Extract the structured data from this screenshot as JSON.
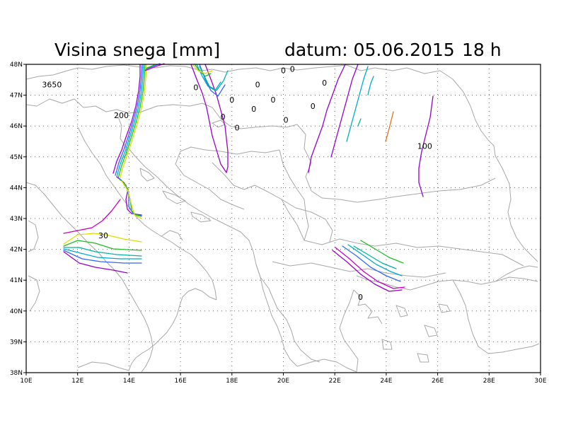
{
  "header": {
    "title": "Visina snega [mm]",
    "date_label": "datum: 05.06.2015",
    "hour_label": "18 h"
  },
  "axes": {
    "lon_range": [
      10,
      30
    ],
    "lat_range": [
      38,
      48
    ],
    "x_ticks": [
      "10E",
      "12E",
      "14E",
      "16E",
      "18E",
      "20E",
      "22E",
      "24E",
      "26E",
      "28E",
      "30E"
    ],
    "y_ticks": [
      "38N",
      "39N",
      "40N",
      "41N",
      "42N",
      "43N",
      "44N",
      "45N",
      "46N",
      "47N",
      "48N"
    ],
    "grid": true,
    "grid_style": "dotted"
  },
  "colors": {
    "purple": "#9900cc",
    "magenta": "#cc00cc",
    "blue": "#3366ff",
    "cyan": "#00aacc",
    "teal": "#00b4a0",
    "green": "#22bb22",
    "yellow": "#dddd00",
    "orange": "#e07020",
    "coast": "#a8a8a8"
  },
  "contour_labels": [
    {
      "text": "3650",
      "lon": 11.0,
      "lat": 47.35
    },
    {
      "text": "200",
      "lon": 13.7,
      "lat": 46.35
    },
    {
      "text": "30",
      "lon": 13.0,
      "lat": 42.45
    },
    {
      "text": "100",
      "lon": 25.5,
      "lat": 45.35
    },
    {
      "text": "0",
      "lon": 20.0,
      "lat": 47.8
    },
    {
      "text": "0",
      "lon": 20.35,
      "lat": 47.85
    },
    {
      "text": "0",
      "lon": 21.6,
      "lat": 47.4
    },
    {
      "text": "0",
      "lon": 19.0,
      "lat": 47.35
    },
    {
      "text": "0",
      "lon": 16.6,
      "lat": 47.25
    },
    {
      "text": "0",
      "lon": 18.0,
      "lat": 46.85
    },
    {
      "text": "0",
      "lon": 19.6,
      "lat": 46.85
    },
    {
      "text": "0",
      "lon": 18.85,
      "lat": 46.55
    },
    {
      "text": "0",
      "lon": 21.15,
      "lat": 46.65
    },
    {
      "text": "0",
      "lon": 17.65,
      "lat": 46.3
    },
    {
      "text": "0",
      "lon": 20.1,
      "lat": 46.2
    },
    {
      "text": "0",
      "lon": 18.2,
      "lat": 45.95
    },
    {
      "text": "0",
      "lon": 23.0,
      "lat": 40.45
    }
  ]
}
